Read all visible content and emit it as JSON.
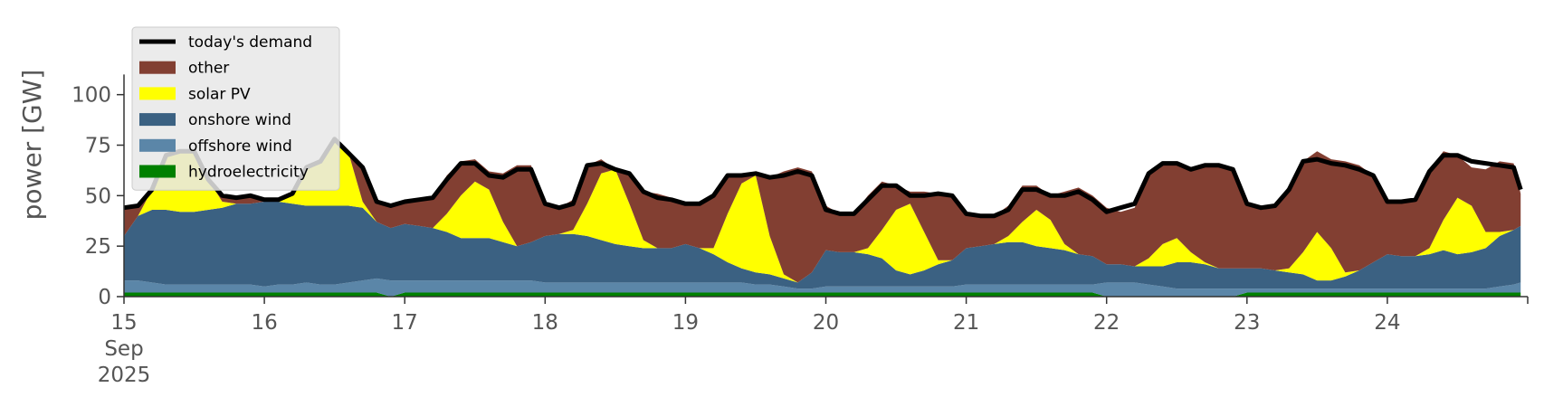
{
  "chart_data": {
    "type": "area",
    "ylabel": "power [GW]",
    "ylim": [
      0,
      120
    ],
    "xlim_days": [
      15,
      25
    ],
    "y_ticks": [
      0,
      25,
      50,
      75,
      100
    ],
    "x_ticks": [
      {
        "day": 15,
        "label": "15",
        "sub1": "Sep",
        "sub2": "2025"
      },
      {
        "day": 16,
        "label": "16"
      },
      {
        "day": 17,
        "label": "17"
      },
      {
        "day": 18,
        "label": "18"
      },
      {
        "day": 19,
        "label": "19"
      },
      {
        "day": 20,
        "label": "20"
      },
      {
        "day": 21,
        "label": "21"
      },
      {
        "day": 22,
        "label": "22"
      },
      {
        "day": 23,
        "label": "23"
      },
      {
        "day": 24,
        "label": "24"
      }
    ],
    "legend_position": "top-left",
    "legend": [
      {
        "key": "demand",
        "label": "today's demand",
        "kind": "line",
        "color": "#000000"
      },
      {
        "key": "other",
        "label": "other",
        "kind": "patch",
        "color": "#823F32"
      },
      {
        "key": "solar",
        "label": "solar PV",
        "kind": "patch",
        "color": "#FFFF00"
      },
      {
        "key": "onshore",
        "label": "onshore wind",
        "kind": "patch",
        "color": "#3B6182"
      },
      {
        "key": "offshore",
        "label": "offshore wind",
        "kind": "patch",
        "color": "#5B86A8"
      },
      {
        "key": "hydro",
        "label": "hydroelectricity",
        "kind": "patch",
        "color": "#008000"
      }
    ],
    "x": [
      15.0,
      15.1,
      15.2,
      15.3,
      15.4,
      15.5,
      15.6,
      15.7,
      15.8,
      15.9,
      16.0,
      16.1,
      16.2,
      16.3,
      16.4,
      16.5,
      16.6,
      16.7,
      16.8,
      16.9,
      17.0,
      17.1,
      17.2,
      17.3,
      17.4,
      17.5,
      17.6,
      17.7,
      17.8,
      17.9,
      18.0,
      18.1,
      18.2,
      18.3,
      18.4,
      18.5,
      18.6,
      18.7,
      18.8,
      18.9,
      19.0,
      19.1,
      19.2,
      19.3,
      19.4,
      19.5,
      19.6,
      19.7,
      19.8,
      19.9,
      20.0,
      20.1,
      20.2,
      20.3,
      20.4,
      20.5,
      20.6,
      20.7,
      20.8,
      20.9,
      21.0,
      21.1,
      21.2,
      21.3,
      21.4,
      21.5,
      21.6,
      21.7,
      21.8,
      21.9,
      22.0,
      22.1,
      22.2,
      22.3,
      22.4,
      22.5,
      22.6,
      22.7,
      22.8,
      22.9,
      23.0,
      23.1,
      23.2,
      23.3,
      23.4,
      23.5,
      23.6,
      23.7,
      23.8,
      23.9,
      24.0,
      24.1,
      24.2,
      24.3,
      24.4,
      24.5,
      24.6,
      24.7,
      24.8,
      24.9,
      24.95
    ],
    "series": [
      {
        "key": "hydro",
        "values": [
          2,
          2,
          2,
          2,
          2,
          2,
          2,
          2,
          2,
          2,
          2,
          2,
          2,
          2,
          2,
          2,
          2,
          2,
          2,
          0,
          2,
          2,
          2,
          2,
          2,
          2,
          2,
          2,
          2,
          2,
          2,
          2,
          2,
          2,
          2,
          2,
          2,
          2,
          2,
          2,
          2,
          2,
          2,
          2,
          2,
          2,
          2,
          2,
          2,
          2,
          2,
          2,
          2,
          2,
          2,
          2,
          2,
          2,
          2,
          2,
          2,
          2,
          2,
          2,
          2,
          2,
          2,
          2,
          2,
          2,
          0,
          0,
          0,
          0,
          0,
          0,
          0,
          0,
          0,
          0,
          2,
          2,
          2,
          2,
          2,
          2,
          2,
          2,
          2,
          2,
          2,
          2,
          2,
          2,
          2,
          2,
          2,
          2,
          2,
          2,
          2
        ]
      },
      {
        "key": "offshore",
        "values": [
          6,
          6,
          5,
          4,
          4,
          4,
          4,
          4,
          4,
          4,
          3,
          4,
          4,
          5,
          4,
          4,
          5,
          6,
          7,
          8,
          6,
          6,
          6,
          6,
          6,
          6,
          6,
          6,
          6,
          6,
          5,
          5,
          5,
          5,
          5,
          5,
          5,
          5,
          5,
          5,
          5,
          5,
          5,
          5,
          5,
          4,
          4,
          3,
          2,
          2,
          3,
          3,
          3,
          3,
          3,
          3,
          3,
          3,
          3,
          3,
          4,
          4,
          4,
          4,
          4,
          4,
          4,
          4,
          4,
          4,
          7,
          7,
          7,
          6,
          5,
          4,
          4,
          4,
          4,
          4,
          2,
          2,
          2,
          2,
          2,
          2,
          2,
          2,
          2,
          2,
          2,
          2,
          2,
          2,
          2,
          2,
          2,
          2,
          3,
          4,
          5
        ]
      },
      {
        "key": "onshore",
        "values": [
          22,
          32,
          36,
          37,
          36,
          36,
          37,
          38,
          40,
          40,
          42,
          41,
          40,
          38,
          39,
          39,
          38,
          36,
          28,
          26,
          28,
          27,
          26,
          24,
          21,
          21,
          21,
          19,
          17,
          19,
          23,
          24,
          24,
          23,
          21,
          19,
          18,
          17,
          17,
          17,
          19,
          17,
          14,
          10,
          7,
          6,
          5,
          4,
          3,
          8,
          18,
          17,
          17,
          16,
          14,
          8,
          6,
          8,
          11,
          13,
          18,
          19,
          20,
          21,
          21,
          19,
          18,
          17,
          15,
          14,
          9,
          9,
          8,
          9,
          10,
          13,
          13,
          12,
          10,
          10,
          10,
          10,
          9,
          8,
          7,
          4,
          4,
          6,
          9,
          13,
          17,
          16,
          16,
          17,
          19,
          17,
          18,
          20,
          25,
          27,
          28
        ]
      },
      {
        "key": "solar",
        "values": [
          0,
          0,
          10,
          27,
          30,
          30,
          15,
          3,
          0,
          0,
          0,
          0,
          5,
          19,
          22,
          33,
          26,
          3,
          0,
          0,
          0,
          0,
          0,
          9,
          21,
          28,
          24,
          10,
          0,
          0,
          0,
          0,
          2,
          16,
          33,
          37,
          21,
          4,
          0,
          0,
          0,
          0,
          3,
          24,
          42,
          48,
          19,
          2,
          0,
          0,
          0,
          0,
          0,
          3,
          14,
          30,
          35,
          19,
          2,
          0,
          0,
          0,
          0,
          3,
          10,
          18,
          14,
          3,
          0,
          0,
          0,
          0,
          0,
          4,
          11,
          12,
          5,
          1,
          0,
          0,
          0,
          0,
          0,
          2,
          11,
          24,
          16,
          2,
          0,
          0,
          0,
          0,
          0,
          3,
          15,
          28,
          23,
          8,
          2,
          0,
          0
        ]
      },
      {
        "key": "other",
        "values": [
          14,
          5,
          0,
          0,
          0,
          0,
          0,
          3,
          3,
          4,
          1,
          1,
          0,
          0,
          0,
          0,
          0,
          17,
          10,
          11,
          11,
          13,
          15,
          19,
          17,
          11,
          9,
          24,
          40,
          38,
          16,
          13,
          15,
          19,
          7,
          0,
          15,
          24,
          27,
          25,
          20,
          22,
          26,
          20,
          5,
          1,
          29,
          51,
          57,
          50,
          22,
          19,
          19,
          26,
          24,
          12,
          6,
          20,
          33,
          33,
          17,
          15,
          14,
          15,
          18,
          12,
          12,
          26,
          33,
          30,
          28,
          26,
          29,
          42,
          40,
          37,
          41,
          48,
          51,
          49,
          32,
          30,
          32,
          41,
          45,
          40,
          44,
          55,
          52,
          43,
          27,
          26,
          29,
          39,
          34,
          21,
          19,
          31,
          35,
          33,
          16
        ]
      },
      {
        "key": "demand",
        "values": [
          44,
          45,
          53,
          70,
          72,
          72,
          58,
          50,
          49,
          50,
          48,
          48,
          51,
          64,
          67,
          78,
          71,
          64,
          47,
          45,
          47,
          48,
          49,
          58,
          66,
          66,
          60,
          59,
          63,
          63,
          46,
          44,
          46,
          65,
          66,
          63,
          61,
          52,
          49,
          48,
          46,
          46,
          50,
          60,
          60,
          61,
          59,
          60,
          62,
          60,
          43,
          41,
          41,
          48,
          55,
          55,
          50,
          50,
          51,
          50,
          41,
          40,
          40,
          43,
          53,
          53,
          50,
          50,
          52,
          48,
          42,
          44,
          46,
          61,
          66,
          66,
          63,
          65,
          65,
          63,
          46,
          44,
          45,
          53,
          67,
          68,
          66,
          65,
          63,
          60,
          47,
          47,
          48,
          62,
          70,
          70,
          67,
          66,
          65,
          64,
          53
        ]
      }
    ]
  }
}
